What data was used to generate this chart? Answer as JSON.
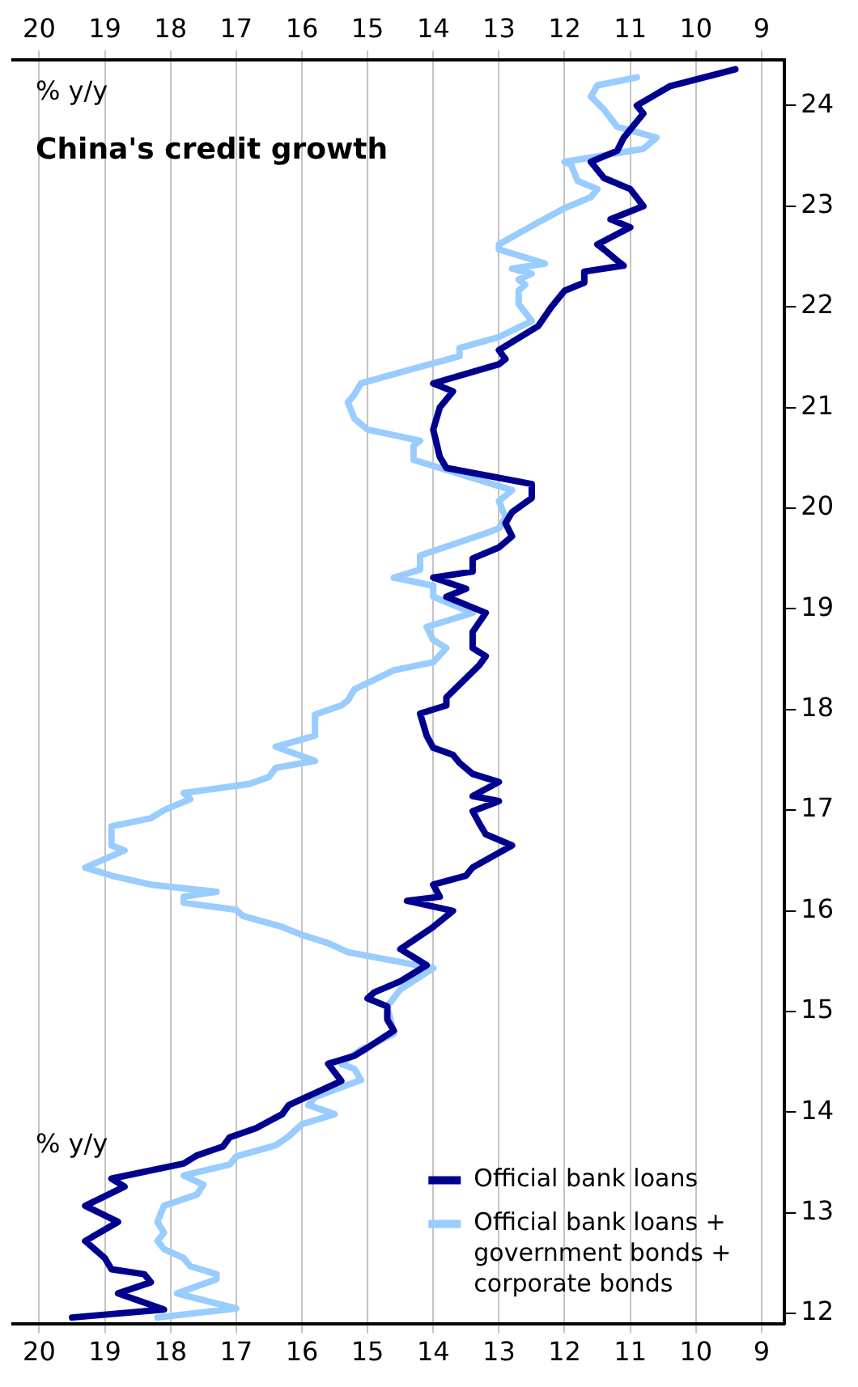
{
  "chart_data": {
    "type": "line",
    "title": "China's credit growth",
    "annotations": [
      "% y/y",
      "% y/y"
    ],
    "legend": "bottom right",
    "grid": "x",
    "xlim": [
      20.4,
      8.65
    ],
    "xticks": [
      20,
      19,
      18,
      17,
      16,
      15,
      14,
      13,
      12,
      11,
      10,
      9
    ],
    "x2lim": [
      20.4,
      8.65
    ],
    "x2ticks": [
      20,
      19,
      18,
      17,
      16,
      15,
      14,
      13,
      12,
      11,
      10,
      9
    ],
    "ylim": [
      11.9,
      24.45
    ],
    "yticks": [
      12,
      13,
      14,
      15,
      16,
      17,
      18,
      19,
      20,
      21,
      22,
      23,
      24
    ],
    "series": [
      {
        "name": "Official bank loans",
        "color": "#00008f",
        "values": [
          11.96,
          12.04,
          12.2,
          12.31,
          12.39,
          12.44,
          12.55,
          12.72,
          12.91,
          13.07,
          13.26,
          13.34,
          13.49,
          13.57,
          13.66,
          13.75,
          13.84,
          13.91,
          13.98,
          14.07,
          14.31,
          14.48,
          14.56,
          14.64,
          14.81,
          14.92,
          15.05,
          15.13,
          15.19,
          15.3,
          15.46,
          15.62,
          15.84,
          16.0,
          16.1,
          16.14,
          16.26,
          16.35,
          16.43,
          16.65,
          16.76,
          16.87,
          16.99,
          17.09,
          17.14,
          17.28,
          17.36,
          17.47,
          17.55,
          17.62,
          17.74,
          17.96,
          18.04,
          18.12,
          18.44,
          18.53,
          18.61,
          18.77,
          18.96,
          19.12,
          19.2,
          19.31,
          19.37,
          19.5,
          19.61,
          19.72,
          19.85,
          19.96,
          20.1,
          20.24,
          20.4,
          20.51,
          20.78,
          21.0,
          21.16,
          21.24,
          21.43,
          21.48,
          21.57,
          21.81,
          22.0,
          22.16,
          22.24,
          22.35,
          22.41,
          22.46,
          22.57,
          22.62,
          22.79,
          22.87,
          23.0,
          23.17,
          23.28,
          23.44,
          23.55,
          23.68,
          23.92,
          24.0,
          24.19,
          24.36
        ],
        "x": [
          19.5,
          18.1,
          18.8,
          18.3,
          18.4,
          18.9,
          19.0,
          19.3,
          18.8,
          19.3,
          18.7,
          18.9,
          17.8,
          17.6,
          17.2,
          17.1,
          16.7,
          16.5,
          16.3,
          16.2,
          15.4,
          15.6,
          15.2,
          15.0,
          14.6,
          14.7,
          14.7,
          15.0,
          14.9,
          14.5,
          14.1,
          14.5,
          14.0,
          13.7,
          14.4,
          13.9,
          14.0,
          13.5,
          13.4,
          12.8,
          13.2,
          13.3,
          13.4,
          13.0,
          13.4,
          13.0,
          13.4,
          13.6,
          13.7,
          14.0,
          14.1,
          14.2,
          13.8,
          13.8,
          13.3,
          13.2,
          13.4,
          13.4,
          13.2,
          13.8,
          13.5,
          14.0,
          13.4,
          13.4,
          13.0,
          12.8,
          12.9,
          12.8,
          12.5,
          12.5,
          13.8,
          13.9,
          14.0,
          13.9,
          13.7,
          14.0,
          13.0,
          12.9,
          13.0,
          12.4,
          12.2,
          12.0,
          11.7,
          11.7,
          11.1,
          11.2,
          11.4,
          11.5,
          11.0,
          11.3,
          10.8,
          11.0,
          11.4,
          11.6,
          11.2,
          11.1,
          10.8,
          10.9,
          10.4,
          9.4
        ]
      },
      {
        "name": "Official bank loans + government bonds + corporate bonds",
        "color": "#99ccff",
        "values": [
          11.96,
          12.05,
          12.2,
          12.34,
          12.39,
          12.47,
          12.55,
          12.64,
          12.72,
          12.8,
          12.91,
          13.07,
          13.18,
          13.28,
          13.37,
          13.48,
          13.56,
          13.67,
          13.76,
          13.88,
          13.98,
          14.07,
          14.15,
          14.32,
          14.43,
          14.48,
          14.62,
          14.78,
          15.05,
          15.22,
          15.43,
          15.59,
          15.68,
          15.76,
          15.84,
          15.95,
          16.01,
          16.08,
          16.14,
          16.19,
          16.26,
          16.35,
          16.43,
          16.6,
          16.65,
          16.84,
          16.92,
          17.0,
          17.11,
          17.17,
          17.26,
          17.33,
          17.42,
          17.49,
          17.56,
          17.63,
          17.74,
          17.95,
          18.04,
          18.09,
          18.2,
          18.39,
          18.47,
          18.61,
          18.69,
          18.82,
          18.96,
          19.12,
          19.23,
          19.31,
          19.39,
          19.53,
          19.75,
          19.8,
          19.91,
          20.07,
          20.18,
          20.48,
          20.62,
          20.67,
          20.78,
          20.89,
          21.05,
          21.13,
          21.24,
          21.35,
          21.51,
          21.59,
          21.7,
          21.86,
          22.03,
          22.16,
          22.22,
          22.27,
          22.33,
          22.38,
          22.43,
          22.57,
          22.62,
          22.84,
          22.98,
          23.09,
          23.17,
          23.25,
          23.41,
          23.44,
          23.57,
          23.68,
          23.79,
          23.96,
          24.09,
          24.2,
          24.28
        ],
        "x": [
          18.2,
          17.0,
          17.9,
          17.3,
          17.3,
          17.7,
          17.8,
          18.1,
          18.2,
          18.1,
          18.2,
          18.1,
          17.6,
          17.5,
          17.8,
          17.1,
          17.0,
          16.4,
          16.2,
          16.0,
          15.5,
          15.9,
          15.8,
          15.1,
          15.2,
          15.4,
          15.1,
          14.6,
          14.7,
          14.5,
          14.0,
          15.3,
          15.6,
          16.0,
          16.3,
          16.9,
          17.0,
          17.8,
          17.8,
          17.3,
          18.3,
          18.9,
          19.3,
          18.7,
          18.9,
          18.9,
          18.3,
          18.1,
          17.7,
          17.8,
          16.8,
          16.5,
          16.4,
          15.8,
          16.1,
          16.4,
          15.8,
          15.8,
          15.4,
          15.3,
          15.2,
          14.6,
          14.0,
          13.8,
          14.0,
          14.1,
          13.4,
          14.0,
          14.0,
          14.6,
          14.2,
          14.2,
          13.2,
          13.0,
          12.9,
          13.0,
          12.8,
          14.3,
          14.3,
          14.2,
          15.0,
          15.2,
          15.3,
          15.2,
          15.1,
          14.5,
          13.6,
          13.6,
          13.0,
          12.5,
          12.7,
          12.7,
          12.6,
          12.7,
          12.5,
          12.8,
          12.3,
          13.0,
          13.0,
          12.4,
          12.0,
          11.6,
          11.5,
          11.8,
          11.9,
          12.0,
          10.8,
          10.6,
          11.2,
          11.4,
          11.6,
          11.5,
          10.9
        ]
      }
    ]
  }
}
